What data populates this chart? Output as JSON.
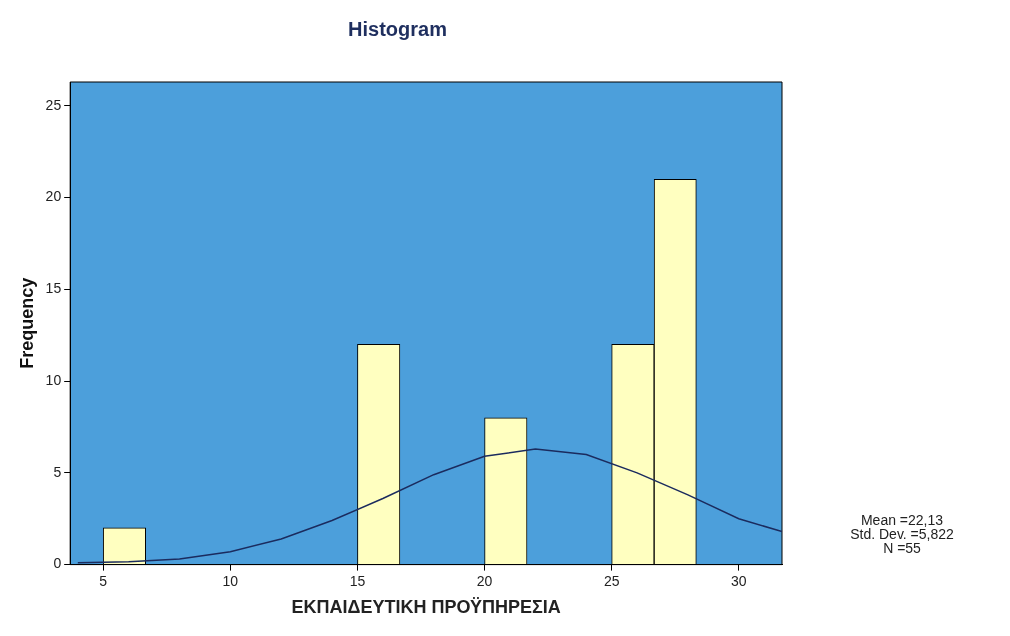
{
  "chart_data": {
    "type": "histogram",
    "title": "Histogram",
    "xlabel": "ΕΚΠΑΙΔΕΥΤΙΚΗ ΠΡΟΫΠΗΡΕΣΙΑ",
    "ylabel": "Frequency",
    "bins": [
      5,
      6.67,
      15,
      16.67,
      20,
      21.67,
      25,
      26.67,
      28.33
    ],
    "values": [
      2,
      0,
      12,
      0,
      8,
      0,
      12,
      21
    ],
    "color": "#ffffc0",
    "series": [
      {
        "type": "line",
        "color": "#1b2b5e",
        "x": [
          4,
          6,
          8,
          10,
          12,
          14,
          16,
          18,
          20,
          22,
          24,
          26,
          28,
          30,
          31.7
        ],
        "values": [
          0.1,
          0.15,
          0.3,
          0.7,
          1.4,
          2.4,
          3.6,
          4.9,
          5.9,
          6.3,
          6,
          5,
          3.8,
          2.5,
          1.8
        ]
      }
    ],
    "xlim": [
      3.7,
      31.7
    ],
    "ylim": [
      0,
      26.3
    ],
    "xticks": [
      5,
      10,
      15,
      20,
      25,
      30
    ],
    "yticks": [
      0,
      5,
      10,
      15,
      20,
      25
    ],
    "grid": false,
    "legend": false,
    "marker": "none",
    "annotations": [
      "Mean =22,13",
      "Std. Dev. =5,822",
      "N =55"
    ]
  }
}
